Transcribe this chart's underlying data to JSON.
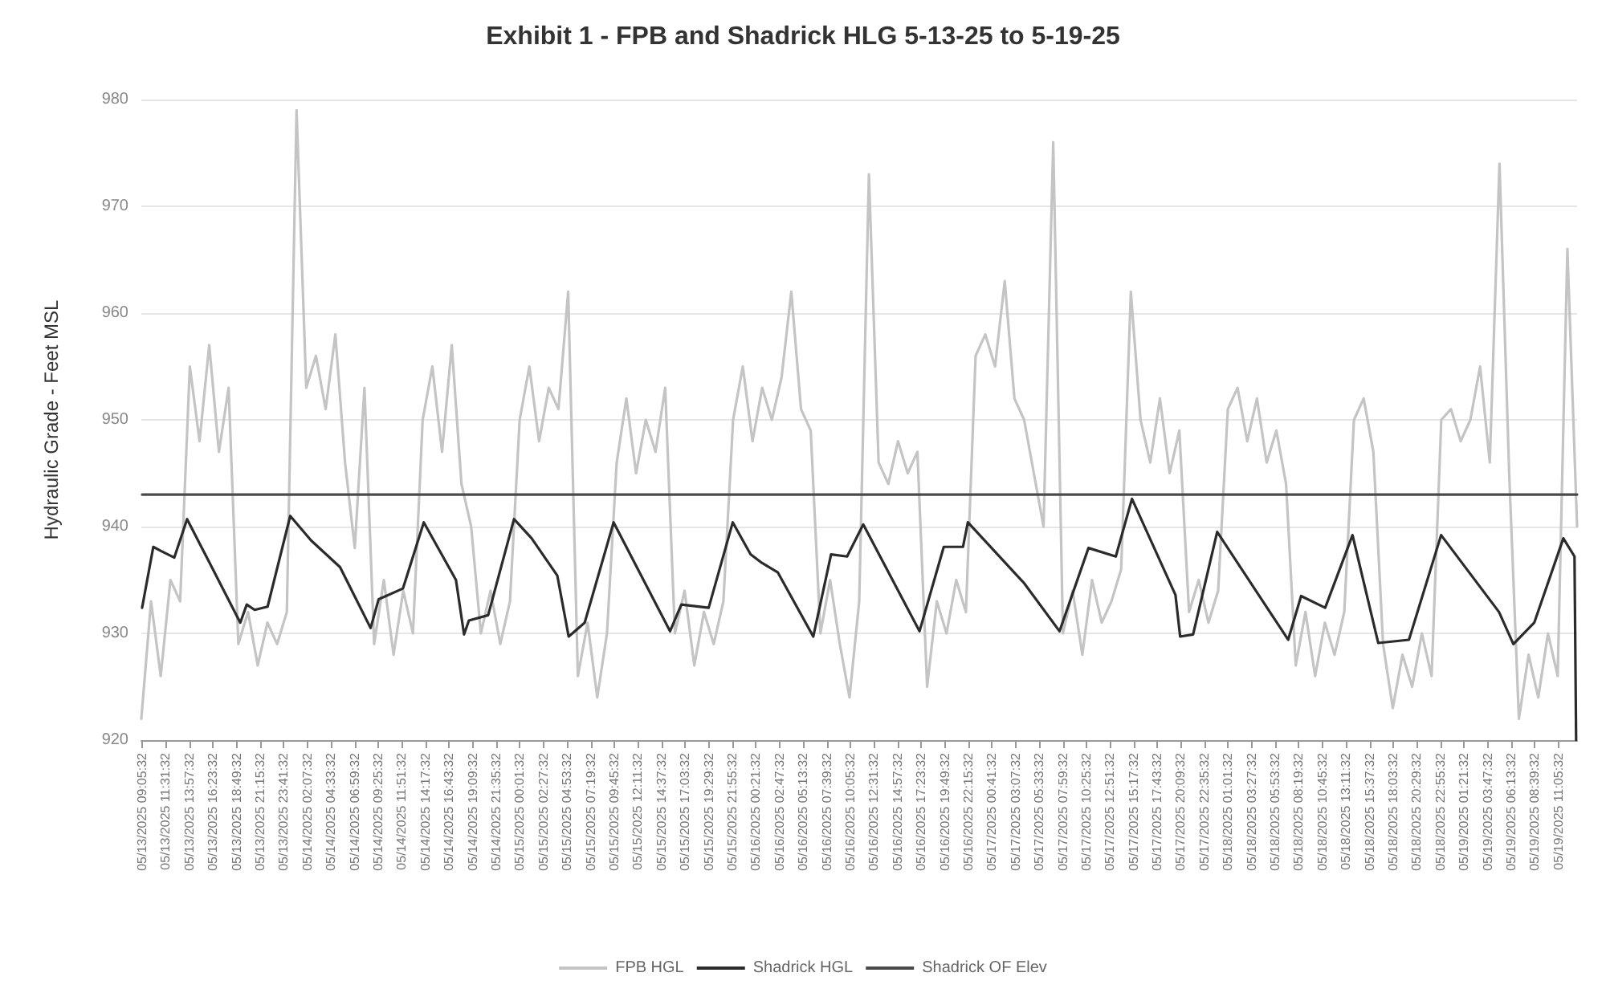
{
  "chart_data": {
    "type": "line",
    "title": "Exhibit 1 - FPB and Shadrick HLG 5-13-25 to 5-19-25",
    "ylabel": "Hydraulic Grade - Feet MSL",
    "xlim": [
      "2025-05-13T09:00",
      "2025-05-19T13:00"
    ],
    "ylim": [
      920,
      980
    ],
    "yticks": [
      920,
      930,
      940,
      950,
      960,
      970,
      980
    ],
    "xticks": [
      {
        "value": "2025-05-13T09:05",
        "label": "05/13/2025 09:05:32"
      },
      {
        "value": "2025-05-13T11:31",
        "label": "05/13/2025 11:31:32"
      },
      {
        "value": "2025-05-13T13:57",
        "label": "05/13/2025 13:57:32"
      },
      {
        "value": "2025-05-13T16:23",
        "label": "05/13/2025 16:23:32"
      },
      {
        "value": "2025-05-13T18:49",
        "label": "05/13/2025 18:49:32"
      },
      {
        "value": "2025-05-13T21:15",
        "label": "05/13/2025 21:15:32"
      },
      {
        "value": "2025-05-13T23:41",
        "label": "05/13/2025 23:41:32"
      },
      {
        "value": "2025-05-14T02:07",
        "label": "05/14/2025 02:07:32"
      },
      {
        "value": "2025-05-14T04:33",
        "label": "05/14/2025 04:33:32"
      },
      {
        "value": "2025-05-14T06:59",
        "label": "05/14/2025 06:59:32"
      },
      {
        "value": "2025-05-14T09:25",
        "label": "05/14/2025 09:25:32"
      },
      {
        "value": "2025-05-14T11:51",
        "label": "05/14/2025 11:51:32"
      },
      {
        "value": "2025-05-14T14:17",
        "label": "05/14/2025 14:17:32"
      },
      {
        "value": "2025-05-14T16:43",
        "label": "05/14/2025 16:43:32"
      },
      {
        "value": "2025-05-14T19:09",
        "label": "05/14/2025 19:09:32"
      },
      {
        "value": "2025-05-14T21:35",
        "label": "05/14/2025 21:35:32"
      },
      {
        "value": "2025-05-15T00:01",
        "label": "05/15/2025 00:01:32"
      },
      {
        "value": "2025-05-15T02:27",
        "label": "05/15/2025 02:27:32"
      },
      {
        "value": "2025-05-15T04:53",
        "label": "05/15/2025 04:53:32"
      },
      {
        "value": "2025-05-15T07:19",
        "label": "05/15/2025 07:19:32"
      },
      {
        "value": "2025-05-15T09:45",
        "label": "05/15/2025 09:45:32"
      },
      {
        "value": "2025-05-15T12:11",
        "label": "05/15/2025 12:11:32"
      },
      {
        "value": "2025-05-15T14:37",
        "label": "05/15/2025 14:37:32"
      },
      {
        "value": "2025-05-15T17:03",
        "label": "05/15/2025 17:03:32"
      },
      {
        "value": "2025-05-15T19:29",
        "label": "05/15/2025 19:29:32"
      },
      {
        "value": "2025-05-15T21:55",
        "label": "05/15/2025 21:55:32"
      },
      {
        "value": "2025-05-16T00:21",
        "label": "05/16/2025 00:21:32"
      },
      {
        "value": "2025-05-16T02:47",
        "label": "05/16/2025 02:47:32"
      },
      {
        "value": "2025-05-16T05:13",
        "label": "05/16/2025 05:13:32"
      },
      {
        "value": "2025-05-16T07:39",
        "label": "05/16/2025 07:39:32"
      },
      {
        "value": "2025-05-16T10:05",
        "label": "05/16/2025 10:05:32"
      },
      {
        "value": "2025-05-16T12:31",
        "label": "05/16/2025 12:31:32"
      },
      {
        "value": "2025-05-16T14:57",
        "label": "05/16/2025 14:57:32"
      },
      {
        "value": "2025-05-16T17:23",
        "label": "05/16/2025 17:23:32"
      },
      {
        "value": "2025-05-16T19:49",
        "label": "05/16/2025 19:49:32"
      },
      {
        "value": "2025-05-16T22:15",
        "label": "05/16/2025 22:15:32"
      },
      {
        "value": "2025-05-17T00:41",
        "label": "05/17/2025 00:41:32"
      },
      {
        "value": "2025-05-17T03:07",
        "label": "05/17/2025 03:07:32"
      },
      {
        "value": "2025-05-17T05:33",
        "label": "05/17/2025 05:33:32"
      },
      {
        "value": "2025-05-17T07:59",
        "label": "05/17/2025 07:59:32"
      },
      {
        "value": "2025-05-17T10:25",
        "label": "05/17/2025 10:25:32"
      },
      {
        "value": "2025-05-17T12:51",
        "label": "05/17/2025 12:51:32"
      },
      {
        "value": "2025-05-17T15:17",
        "label": "05/17/2025 15:17:32"
      },
      {
        "value": "2025-05-17T17:43",
        "label": "05/17/2025 17:43:32"
      },
      {
        "value": "2025-05-17T20:09",
        "label": "05/17/2025 20:09:32"
      },
      {
        "value": "2025-05-17T22:35",
        "label": "05/17/2025 22:35:32"
      },
      {
        "value": "2025-05-18T01:01",
        "label": "05/18/2025 01:01:32"
      },
      {
        "value": "2025-05-18T03:27",
        "label": "05/18/2025 03:27:32"
      },
      {
        "value": "2025-05-18T05:53",
        "label": "05/18/2025 05:53:32"
      },
      {
        "value": "2025-05-18T08:19",
        "label": "05/18/2025 08:19:32"
      },
      {
        "value": "2025-05-18T10:45",
        "label": "05/18/2025 10:45:32"
      },
      {
        "value": "2025-05-18T13:11",
        "label": "05/18/2025 13:11:32"
      },
      {
        "value": "2025-05-18T15:37",
        "label": "05/18/2025 15:37:32"
      },
      {
        "value": "2025-05-18T18:03",
        "label": "05/18/2025 18:03:32"
      },
      {
        "value": "2025-05-18T20:29",
        "label": "05/18/2025 20:29:32"
      },
      {
        "value": "2025-05-18T22:55",
        "label": "05/18/2025 22:55:32"
      },
      {
        "value": "2025-05-19T01:21",
        "label": "05/19/2025 01:21:32"
      },
      {
        "value": "2025-05-19T03:47",
        "label": "05/19/2025 03:47:32"
      },
      {
        "value": "2025-05-19T06:13",
        "label": "05/19/2025 06:13:32"
      },
      {
        "value": "2025-05-19T08:39",
        "label": "05/19/2025 08:39:32"
      },
      {
        "value": "2025-05-19T11:05",
        "label": "05/19/2025 11:05:32"
      }
    ],
    "grid": "y",
    "legend": "bottom",
    "marker": "none",
    "line_style": "solid",
    "series": [
      {
        "name": "FPB HGL",
        "color": "#c4c4c4",
        "x": [
          "2025-05-13T09:00",
          "2025-05-13T10:00",
          "2025-05-13T11:00",
          "2025-05-13T12:00",
          "2025-05-13T13:00",
          "2025-05-13T14:00",
          "2025-05-13T15:00",
          "2025-05-13T16:00",
          "2025-05-13T17:00",
          "2025-05-13T18:00",
          "2025-05-13T19:00",
          "2025-05-13T20:00",
          "2025-05-13T21:00",
          "2025-05-13T22:00",
          "2025-05-13T23:00",
          "2025-05-14T00:00",
          "2025-05-14T01:00",
          "2025-05-14T02:00",
          "2025-05-14T03:00",
          "2025-05-14T04:00",
          "2025-05-14T05:00",
          "2025-05-14T06:00",
          "2025-05-14T07:00",
          "2025-05-14T08:00",
          "2025-05-14T09:00",
          "2025-05-14T10:00",
          "2025-05-14T11:00",
          "2025-05-14T12:00",
          "2025-05-14T13:00",
          "2025-05-14T14:00",
          "2025-05-14T15:00",
          "2025-05-14T16:00",
          "2025-05-14T17:00",
          "2025-05-14T18:00",
          "2025-05-14T19:00",
          "2025-05-14T20:00",
          "2025-05-14T21:00",
          "2025-05-14T22:00",
          "2025-05-14T23:00",
          "2025-05-15T00:00",
          "2025-05-15T01:00",
          "2025-05-15T02:00",
          "2025-05-15T03:00",
          "2025-05-15T04:00",
          "2025-05-15T05:00",
          "2025-05-15T06:00",
          "2025-05-15T07:00",
          "2025-05-15T08:00",
          "2025-05-15T09:00",
          "2025-05-15T10:00",
          "2025-05-15T11:00",
          "2025-05-15T12:00",
          "2025-05-15T13:00",
          "2025-05-15T14:00",
          "2025-05-15T15:00",
          "2025-05-15T16:00",
          "2025-05-15T17:00",
          "2025-05-15T18:00",
          "2025-05-15T19:00",
          "2025-05-15T20:00",
          "2025-05-15T21:00",
          "2025-05-15T22:00",
          "2025-05-15T23:00",
          "2025-05-16T00:00",
          "2025-05-16T01:00",
          "2025-05-16T02:00",
          "2025-05-16T03:00",
          "2025-05-16T04:00",
          "2025-05-16T05:00",
          "2025-05-16T06:00",
          "2025-05-16T07:00",
          "2025-05-16T08:00",
          "2025-05-16T09:00",
          "2025-05-16T10:00",
          "2025-05-16T11:00",
          "2025-05-16T12:00",
          "2025-05-16T13:00",
          "2025-05-16T14:00",
          "2025-05-16T15:00",
          "2025-05-16T16:00",
          "2025-05-16T17:00",
          "2025-05-16T18:00",
          "2025-05-16T19:00",
          "2025-05-16T20:00",
          "2025-05-16T21:00",
          "2025-05-16T22:00",
          "2025-05-16T23:00",
          "2025-05-17T00:00",
          "2025-05-17T01:00",
          "2025-05-17T02:00",
          "2025-05-17T03:00",
          "2025-05-17T04:00",
          "2025-05-17T05:00",
          "2025-05-17T06:00",
          "2025-05-17T07:00",
          "2025-05-17T08:00",
          "2025-05-17T09:00",
          "2025-05-17T10:00",
          "2025-05-17T11:00",
          "2025-05-17T12:00",
          "2025-05-17T13:00",
          "2025-05-17T14:00",
          "2025-05-17T15:00",
          "2025-05-17T16:00",
          "2025-05-17T17:00",
          "2025-05-17T18:00",
          "2025-05-17T19:00",
          "2025-05-17T20:00",
          "2025-05-17T21:00",
          "2025-05-17T22:00",
          "2025-05-17T23:00",
          "2025-05-18T00:00",
          "2025-05-18T01:00",
          "2025-05-18T02:00",
          "2025-05-18T03:00",
          "2025-05-18T04:00",
          "2025-05-18T05:00",
          "2025-05-18T06:00",
          "2025-05-18T07:00",
          "2025-05-18T08:00",
          "2025-05-18T09:00",
          "2025-05-18T10:00",
          "2025-05-18T11:00",
          "2025-05-18T12:00",
          "2025-05-18T13:00",
          "2025-05-18T14:00",
          "2025-05-18T15:00",
          "2025-05-18T16:00",
          "2025-05-18T17:00",
          "2025-05-18T18:00",
          "2025-05-18T19:00",
          "2025-05-18T20:00",
          "2025-05-18T21:00",
          "2025-05-18T22:00",
          "2025-05-18T23:00",
          "2025-05-19T00:00",
          "2025-05-19T01:00",
          "2025-05-19T02:00",
          "2025-05-19T03:00",
          "2025-05-19T04:00",
          "2025-05-19T05:00",
          "2025-05-19T06:00",
          "2025-05-19T07:00",
          "2025-05-19T08:00",
          "2025-05-19T09:00",
          "2025-05-19T10:00",
          "2025-05-19T11:00",
          "2025-05-19T12:00",
          "2025-05-19T13:00"
        ],
        "values": [
          922,
          933,
          926,
          935,
          933,
          955,
          948,
          957,
          947,
          953,
          929,
          932,
          927,
          931,
          929,
          932,
          979,
          953,
          956,
          951,
          958,
          946,
          938,
          953,
          929,
          935,
          928,
          934,
          930,
          950,
          955,
          947,
          957,
          944,
          940,
          930,
          934,
          929,
          933,
          950,
          955,
          948,
          953,
          951,
          962,
          926,
          931,
          924,
          930,
          946,
          952,
          945,
          950,
          947,
          953,
          930,
          934,
          927,
          932,
          929,
          933,
          950,
          955,
          948,
          953,
          950,
          954,
          962,
          951,
          949,
          930,
          935,
          929,
          924,
          933,
          973,
          946,
          944,
          948,
          945,
          947,
          925,
          933,
          930,
          935,
          932,
          956,
          958,
          955,
          963,
          952,
          950,
          945,
          940,
          976,
          930,
          934,
          928,
          935,
          931,
          933,
          936,
          962,
          950,
          946,
          952,
          945,
          949,
          932,
          935,
          931,
          934,
          951,
          953,
          948,
          952,
          946,
          949,
          944,
          927,
          932,
          926,
          931,
          928,
          932,
          950,
          952,
          947,
          929,
          923,
          928,
          925,
          930,
          926,
          950,
          951,
          948,
          950,
          955,
          946,
          974,
          945,
          922,
          928,
          924,
          930,
          926,
          966,
          940
        ]
      },
      {
        "name": "Shadrick HGL",
        "color": "#2b2b2b",
        "x": [
          "2025-05-13T09:05",
          "2025-05-13T10:14",
          "2025-05-13T11:04",
          "2025-05-13T12:24",
          "2025-05-13T13:43",
          "2025-05-13T19:12",
          "2025-05-13T19:52",
          "2025-05-13T20:41",
          "2025-05-13T22:01",
          "2025-05-14T00:21",
          "2025-05-14T02:30",
          "2025-05-14T05:29",
          "2025-05-14T08:38",
          "2025-05-14T09:28",
          "2025-05-14T11:58",
          "2025-05-14T14:07",
          "2025-05-14T17:26",
          "2025-05-14T18:16",
          "2025-05-14T18:46",
          "2025-05-14T20:45",
          "2025-05-14T23:25",
          "2025-05-15T01:14",
          "2025-05-15T03:53",
          "2025-05-15T05:03",
          "2025-05-15T06:42",
          "2025-05-15T09:41",
          "2025-05-15T15:30",
          "2025-05-15T16:40",
          "2025-05-15T19:29",
          "2025-05-15T21:58",
          "2025-05-15T23:48",
          "2025-05-16T00:58",
          "2025-05-16T02:37",
          "2025-05-16T06:16",
          "2025-05-16T08:06",
          "2025-05-16T09:45",
          "2025-05-16T11:25",
          "2025-05-16T17:13",
          "2025-05-16T19:43",
          "2025-05-16T21:42",
          "2025-05-16T22:12",
          "2025-05-17T04:00",
          "2025-05-17T07:39",
          "2025-05-17T10:38",
          "2025-05-17T13:27",
          "2025-05-17T15:07",
          "2025-05-17T19:36",
          "2025-05-17T20:05",
          "2025-05-17T21:25",
          "2025-05-17T23:54",
          "2025-05-18T07:13",
          "2025-05-18T08:33",
          "2025-05-18T11:02",
          "2025-05-18T13:51",
          "2025-05-18T16:30",
          "2025-05-18T19:40",
          "2025-05-18T22:59",
          "2025-05-19T04:57",
          "2025-05-19T06:26",
          "2025-05-19T08:35",
          "2025-05-19T11:35",
          "2025-05-19T12:44",
          "2025-05-19T12:54"
        ],
        "values": [
          932.4,
          938.1,
          937.7,
          937.1,
          940.7,
          931,
          932.7,
          932.2,
          932.5,
          941,
          938.7,
          936.2,
          930.5,
          933.2,
          934.2,
          940.4,
          935,
          929.9,
          931.2,
          931.7,
          940.7,
          938.9,
          935.4,
          929.7,
          931,
          940.4,
          930.2,
          932.7,
          932.4,
          940.4,
          937.4,
          936.6,
          935.7,
          929.7,
          937.4,
          937.2,
          940.2,
          930.2,
          938.1,
          938.1,
          940.4,
          934.7,
          930.2,
          938,
          937.2,
          942.6,
          933.6,
          929.7,
          929.9,
          939.5,
          929.4,
          933.5,
          932.4,
          939.2,
          929.1,
          929.4,
          939.2,
          932,
          929,
          931,
          938.9,
          937.2,
          920
        ]
      },
      {
        "name": "Shadrick OF Elev",
        "color": "#4a4a4a",
        "x": [
          "2025-05-13T09:05",
          "2025-05-19T13:00"
        ],
        "values": [
          943,
          943
        ]
      }
    ]
  }
}
